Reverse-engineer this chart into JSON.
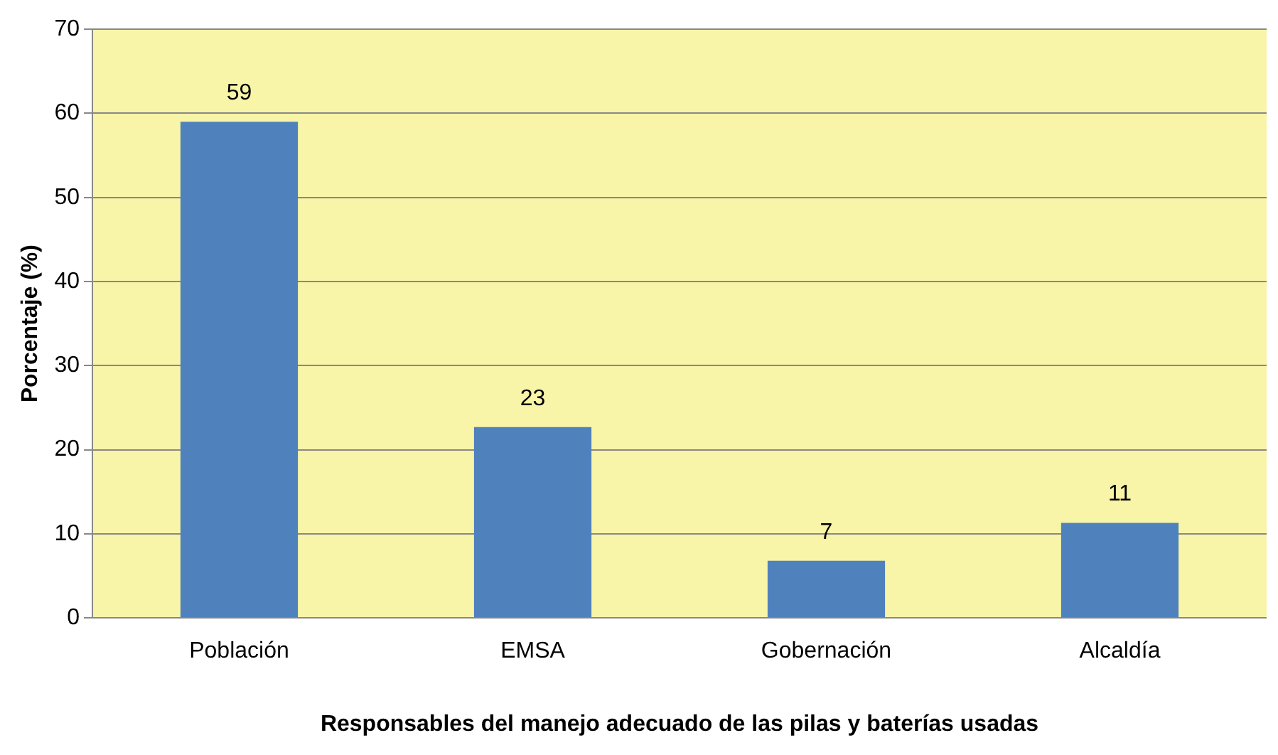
{
  "chart_data": {
    "type": "bar",
    "xlabel": "Responsables del manejo adecuado de las pilas y baterías usadas",
    "ylabel": "Porcentaje (%)",
    "categories": [
      "Población",
      "EMSA",
      "Gobernación",
      "Alcaldía"
    ],
    "values": [
      59,
      22.7,
      6.8,
      11.3
    ],
    "value_labels": [
      "59",
      "23",
      "7",
      "11"
    ],
    "color": "#4f81bd",
    "ylim": [
      0,
      70
    ],
    "yticks": [
      0,
      10,
      20,
      30,
      40,
      50,
      60,
      70
    ],
    "grid": "y",
    "legend": false
  }
}
